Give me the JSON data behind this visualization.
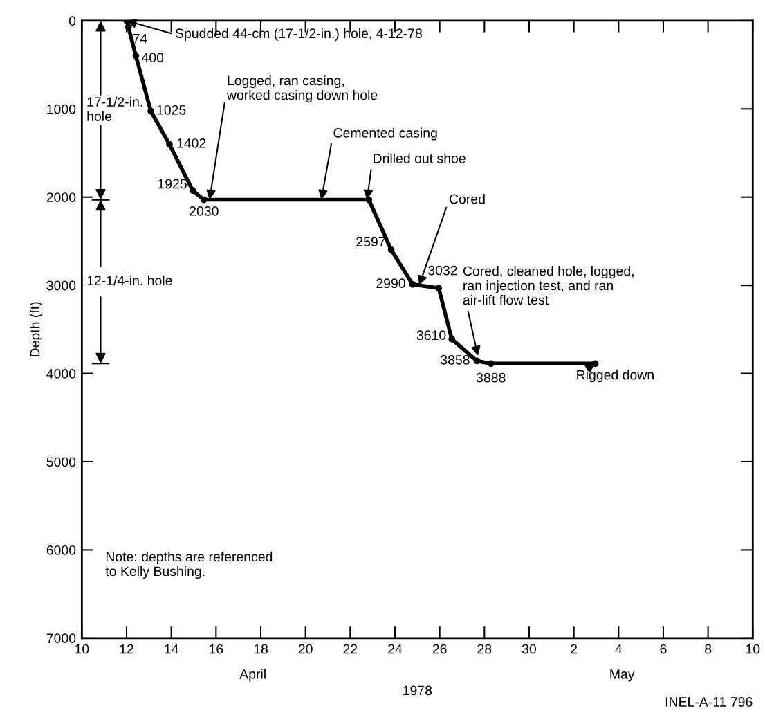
{
  "chart_data": {
    "type": "line",
    "xlabel": "1978",
    "ylabel": "Depth (ft)",
    "x": [
      "1978-04-12T00:00",
      "1978-04-12T02:00",
      "1978-04-12T10:00",
      "1978-04-13T02:00",
      "1978-04-13T22:00",
      "1978-04-14T23:00",
      "1978-04-15T11:00",
      "1978-04-22T20:00",
      "1978-04-23T20:00",
      "1978-04-24T19:00",
      "1978-04-25T23:00",
      "1978-04-26T13:00",
      "1978-04-27T16:00",
      "1978-04-28T07:00",
      "1978-05-02T23:00"
    ],
    "series": [
      {
        "color": "#000000",
        "values": [
          0,
          74,
          400,
          1025,
          1402,
          1925,
          2030,
          2030,
          2597,
          2990,
          3032,
          3610,
          3858,
          3888,
          3888
        ],
        "value_labels": [
          null,
          "74",
          "400",
          "1025",
          "1402",
          "1925",
          "2030",
          null,
          "2597",
          "2990",
          "3032",
          "3610",
          "3858",
          "3888",
          null
        ]
      }
    ],
    "xlim": [
      "1978-04-10",
      "1978-05-10"
    ],
    "xticks": [
      {
        "value": "1978-04-10",
        "label": "10"
      },
      {
        "value": "1978-04-12",
        "label": "12"
      },
      {
        "value": "1978-04-14",
        "label": "14"
      },
      {
        "value": "1978-04-16",
        "label": "16"
      },
      {
        "value": "1978-04-18",
        "label": "18"
      },
      {
        "value": "1978-04-20",
        "label": "20"
      },
      {
        "value": "1978-04-22",
        "label": "22"
      },
      {
        "value": "1978-04-24",
        "label": "24"
      },
      {
        "value": "1978-04-26",
        "label": "26"
      },
      {
        "value": "1978-04-28",
        "label": "28"
      },
      {
        "value": "1978-04-30",
        "label": "30"
      },
      {
        "value": "1978-05-02",
        "label": "2"
      },
      {
        "value": "1978-05-04",
        "label": "4"
      },
      {
        "value": "1978-05-06",
        "label": "6"
      },
      {
        "value": "1978-05-08",
        "label": "8"
      },
      {
        "value": "1978-05-10",
        "label": "10"
      }
    ],
    "ylim": [
      7000,
      0
    ],
    "yticks": [
      0,
      1000,
      2000,
      3000,
      4000,
      5000,
      6000,
      7000
    ],
    "grid": false,
    "legend": false,
    "marker": "circle",
    "line_style": "solid",
    "annotations": [
      {
        "text": "Spudded 44-cm (17-1/2-in.) hole, 4-12-78",
        "x": "1978-04-12T00:00",
        "y": 0
      },
      {
        "text": "Logged, ran casing,\nworked casing down hole",
        "x": "1978-04-15T17:00",
        "y": 2030
      },
      {
        "text": "Cemented casing",
        "x": "1978-04-20T17:00",
        "y": 2030
      },
      {
        "text": "Drilled out shoe",
        "x": "1978-04-22T18:00",
        "y": 2030
      },
      {
        "text": "Cored",
        "x": "1978-04-25T02:00",
        "y": 3000
      },
      {
        "text": "Cored, cleaned hole, logged,\nran injection test, and ran\nair-lift flow test",
        "x": "1978-04-27T17:00",
        "y": 3800
      },
      {
        "text": "Rigged down",
        "x": "1978-05-02T23:00",
        "y": 3888
      },
      "April",
      "May",
      "Note: depths are referenced\nto Kelly Bushing.",
      "INEL-A-11 796",
      "17-1/2-in.\nhole",
      "12-1/4-in. hole"
    ]
  }
}
